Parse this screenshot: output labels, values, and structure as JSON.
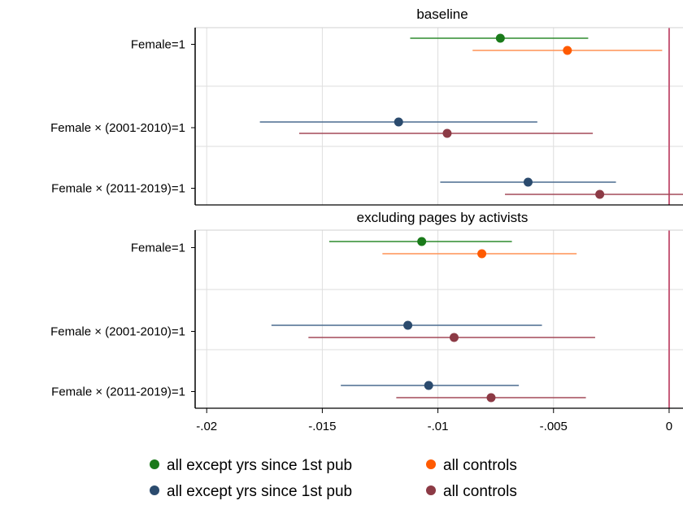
{
  "chart_data": {
    "type": "scatter",
    "subtype": "coefficient plot with 95% confidence intervals (horizontal)",
    "x_axis": {
      "range": [
        -0.0205,
        0.0006
      ],
      "ticks": [
        -0.02,
        -0.015,
        -0.01,
        -0.005,
        0
      ],
      "tick_labels": [
        "-.02",
        "-.015",
        "-.01",
        "-.005",
        "0"
      ],
      "reference_line": 0,
      "reference_line_color": "#c55a78"
    },
    "grid": true,
    "legend": {
      "placement": "bottom",
      "entries": [
        {
          "label": "all except yrs since 1st pub",
          "color": "#1a7a1a"
        },
        {
          "label": "all controls",
          "color": "#ff5a00"
        },
        {
          "label": "all except yrs since 1st pub",
          "color": "#2b4b6e"
        },
        {
          "label": "all controls",
          "color": "#8c3a45"
        }
      ]
    },
    "colors": {
      "green": "#1a7a1a",
      "orange": "#ff5a00",
      "navy": "#2b4b6e",
      "maroon": "#8c3a45",
      "line_green": "#2e8b2e",
      "line_orange": "#ff9255",
      "line_navy": "#4a6c8f",
      "line_maroon": "#a34a58"
    },
    "panels": [
      {
        "title": "baseline",
        "rows": [
          {
            "label": "Female=1",
            "series": [
              {
                "name": "all except yrs since 1st pub",
                "color_key": "green",
                "estimate": -0.0073,
                "ci": [
                  -0.0112,
                  -0.0035
                ]
              },
              {
                "name": "all controls",
                "color_key": "orange",
                "estimate": -0.0044,
                "ci": [
                  -0.0085,
                  -0.0003
                ]
              }
            ]
          },
          {
            "label": "Female × (2001-2010)=1",
            "series": [
              {
                "name": "all except yrs since 1st pub",
                "color_key": "navy",
                "estimate": -0.0117,
                "ci": [
                  -0.0177,
                  -0.0057
                ]
              },
              {
                "name": "all controls",
                "color_key": "maroon",
                "estimate": -0.0096,
                "ci": [
                  -0.016,
                  -0.0033
                ]
              }
            ]
          },
          {
            "label": "Female × (2011-2019)=1",
            "series": [
              {
                "name": "all except yrs since 1st pub",
                "color_key": "navy",
                "estimate": -0.0061,
                "ci": [
                  -0.0099,
                  -0.0023
                ]
              },
              {
                "name": "all controls",
                "color_key": "maroon",
                "estimate": -0.003,
                "ci": [
                  -0.0071,
                  0.0011
                ]
              }
            ]
          }
        ]
      },
      {
        "title": "excluding pages by activists",
        "rows": [
          {
            "label": "Female=1",
            "series": [
              {
                "name": "all except yrs since 1st pub",
                "color_key": "green",
                "estimate": -0.0107,
                "ci": [
                  -0.0147,
                  -0.0068
                ]
              },
              {
                "name": "all controls",
                "color_key": "orange",
                "estimate": -0.0081,
                "ci": [
                  -0.0124,
                  -0.004
                ]
              }
            ]
          },
          {
            "label": "Female × (2001-2010)=1",
            "series": [
              {
                "name": "all except yrs since 1st pub",
                "color_key": "navy",
                "estimate": -0.0113,
                "ci": [
                  -0.0172,
                  -0.0055
                ]
              },
              {
                "name": "all controls",
                "color_key": "maroon",
                "estimate": -0.0093,
                "ci": [
                  -0.0156,
                  -0.0032
                ]
              }
            ]
          },
          {
            "label": "Female × (2011-2019)=1",
            "series": [
              {
                "name": "all except yrs since 1st pub",
                "color_key": "navy",
                "estimate": -0.0104,
                "ci": [
                  -0.0142,
                  -0.0065
                ]
              },
              {
                "name": "all controls",
                "color_key": "maroon",
                "estimate": -0.0077,
                "ci": [
                  -0.0118,
                  -0.0036
                ]
              }
            ]
          }
        ]
      }
    ]
  }
}
